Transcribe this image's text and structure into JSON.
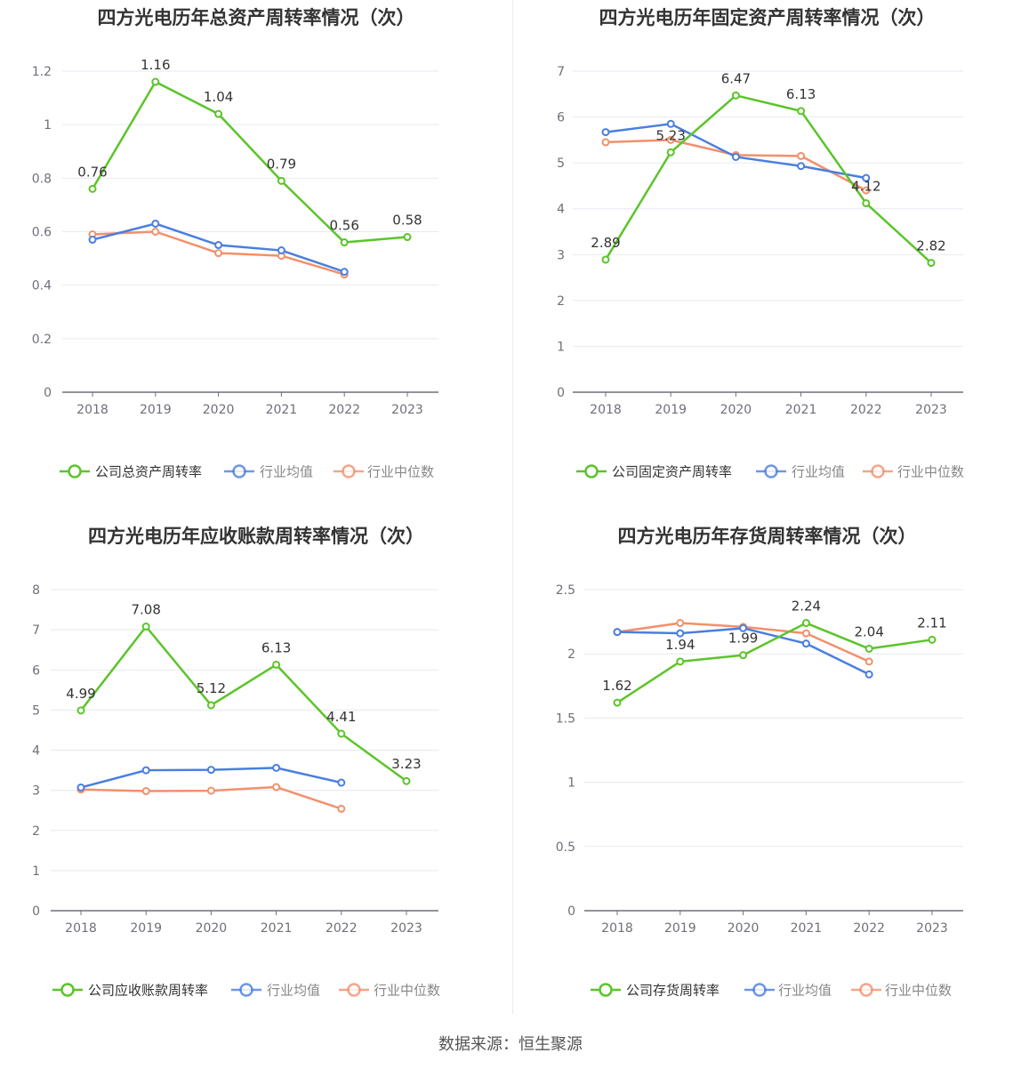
{
  "source": "数据来源：恒生聚源",
  "colors": {
    "company": "#5cc42a",
    "mean": "#4a7ee0",
    "median": "#f2906c"
  },
  "chart_data": [
    {
      "type": "line",
      "title": "四方光电历年总资产周转率情况（次）",
      "x": [
        "2018",
        "2019",
        "2020",
        "2021",
        "2022",
        "2023"
      ],
      "ylim": [
        0,
        1.2
      ],
      "yticks": [
        "0",
        "0.2",
        "0.4",
        "0.6",
        "0.8",
        "1",
        "1.2"
      ],
      "yticks_values": [
        0,
        0.2,
        0.4,
        0.6,
        0.8,
        1,
        1.2
      ],
      "legend_position": "bottom",
      "series": [
        {
          "name": "公司总资产周转率",
          "values": [
            0.76,
            1.16,
            1.04,
            0.79,
            0.56,
            0.58
          ],
          "labels": [
            "0.76",
            "1.16",
            "1.04",
            "0.79",
            "0.56",
            "0.58"
          ]
        },
        {
          "name": "行业均值",
          "values": [
            0.57,
            0.63,
            0.55,
            0.53,
            0.45,
            null
          ]
        },
        {
          "name": "行业中位数",
          "values": [
            0.59,
            0.6,
            0.52,
            0.51,
            0.44,
            null
          ]
        }
      ]
    },
    {
      "type": "line",
      "title": "四方光电历年固定资产周转率情况（次）",
      "x": [
        "2018",
        "2019",
        "2020",
        "2021",
        "2022",
        "2023"
      ],
      "ylim": [
        0,
        7
      ],
      "yticks": [
        "0",
        "1",
        "2",
        "3",
        "4",
        "5",
        "6",
        "7"
      ],
      "yticks_values": [
        0,
        1,
        2,
        3,
        4,
        5,
        6,
        7
      ],
      "legend_position": "bottom",
      "series": [
        {
          "name": "公司固定资产周转率",
          "values": [
            2.89,
            5.23,
            6.47,
            6.13,
            4.12,
            2.82
          ],
          "labels": [
            "2.89",
            "5.23",
            "6.47",
            "6.13",
            "4.12",
            "2.82"
          ]
        },
        {
          "name": "行业均值",
          "values": [
            5.67,
            5.85,
            5.13,
            4.93,
            4.67,
            null
          ]
        },
        {
          "name": "行业中位数",
          "values": [
            5.45,
            5.5,
            5.17,
            5.15,
            4.4,
            null
          ]
        }
      ]
    },
    {
      "type": "line",
      "title": "四方光电历年应收账款周转率情况（次）",
      "x": [
        "2018",
        "2019",
        "2020",
        "2021",
        "2022",
        "2023"
      ],
      "ylim": [
        0,
        8
      ],
      "yticks": [
        "0",
        "1",
        "2",
        "3",
        "4",
        "5",
        "6",
        "7",
        "8"
      ],
      "yticks_values": [
        0,
        1,
        2,
        3,
        4,
        5,
        6,
        7,
        8
      ],
      "legend_position": "bottom",
      "series": [
        {
          "name": "公司应收账款周转率",
          "values": [
            4.99,
            7.08,
            5.12,
            6.13,
            4.41,
            3.23
          ],
          "labels": [
            "4.99",
            "7.08",
            "5.12",
            "6.13",
            "4.41",
            "3.23"
          ]
        },
        {
          "name": "行业均值",
          "values": [
            3.07,
            3.5,
            3.51,
            3.56,
            3.19,
            null
          ]
        },
        {
          "name": "行业中位数",
          "values": [
            3.02,
            2.98,
            2.99,
            3.08,
            2.54,
            null
          ]
        }
      ]
    },
    {
      "type": "line",
      "title": "四方光电历年存货周转率情况（次）",
      "x": [
        "2018",
        "2019",
        "2020",
        "2021",
        "2022",
        "2023"
      ],
      "ylim": [
        0,
        2.5
      ],
      "yticks": [
        "0",
        "0.5",
        "1",
        "1.5",
        "2",
        "2.5"
      ],
      "yticks_values": [
        0,
        0.5,
        1,
        1.5,
        2,
        2.5
      ],
      "legend_position": "bottom",
      "series": [
        {
          "name": "公司存货周转率",
          "values": [
            1.62,
            1.94,
            1.99,
            2.24,
            2.04,
            2.11
          ],
          "labels": [
            "1.62",
            "1.94",
            "1.99",
            "2.24",
            "2.04",
            "2.11"
          ]
        },
        {
          "name": "行业均值",
          "values": [
            2.17,
            2.16,
            2.2,
            2.08,
            1.84,
            null
          ]
        },
        {
          "name": "行业中位数",
          "values": [
            2.17,
            2.24,
            2.21,
            2.16,
            1.94,
            null
          ]
        }
      ]
    }
  ]
}
